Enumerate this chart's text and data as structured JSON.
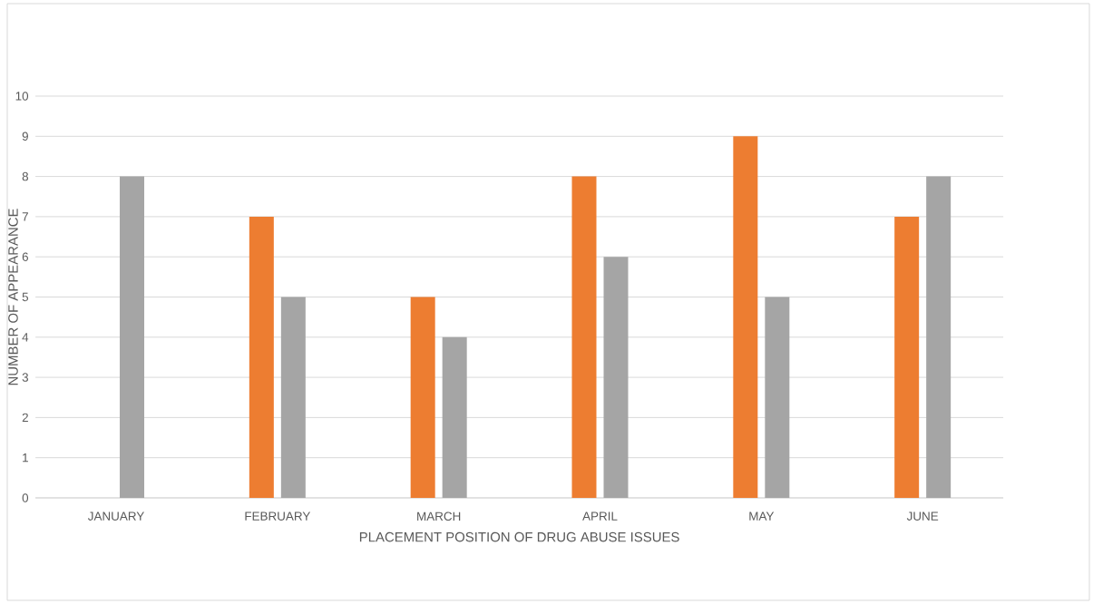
{
  "chart_data": {
    "type": "bar",
    "xlabel": "PLACEMENT POSITION OF DRUG ABUSE ISSUES",
    "ylabel": "NUMBER OF APPEARANCE",
    "categories": [
      "JANUARY",
      "FEBRUARY",
      "MARCH",
      "APRIL",
      "MAY",
      "JUNE"
    ],
    "series": [
      {
        "color": "#ed7d31",
        "values": [
          null,
          7,
          5,
          8,
          9,
          7
        ]
      },
      {
        "color": "#a5a5a5",
        "values": [
          8,
          5,
          4,
          6,
          5,
          8
        ]
      }
    ],
    "ylim": [
      0,
      10
    ],
    "yticks": [
      0,
      1,
      2,
      3,
      4,
      5,
      6,
      7,
      8,
      9,
      10
    ],
    "grid": "y"
  }
}
